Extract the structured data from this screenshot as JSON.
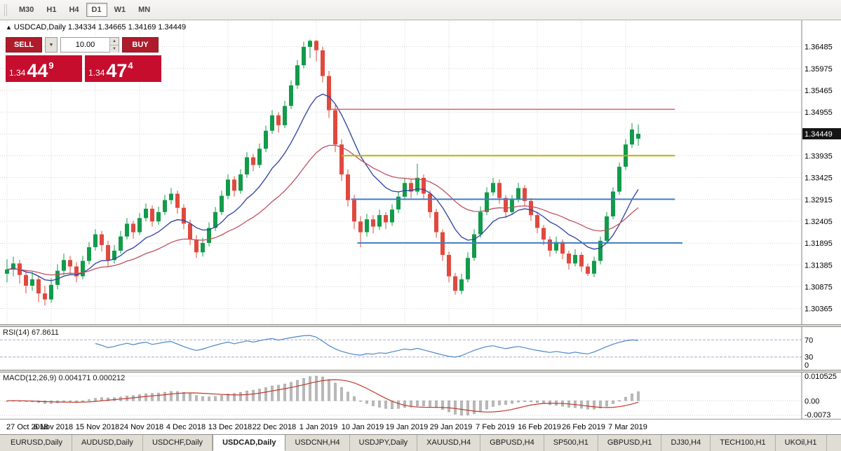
{
  "toolbar": {
    "timeframes": [
      {
        "label": "M30",
        "active": false
      },
      {
        "label": "H1",
        "active": false
      },
      {
        "label": "H4",
        "active": false
      },
      {
        "label": "D1",
        "active": true
      },
      {
        "label": "W1",
        "active": false
      },
      {
        "label": "MN",
        "active": false
      }
    ]
  },
  "symbol_info": {
    "arrow": "▲",
    "text": "USDCAD,Daily 1.34334 1.34665 1.34169 1.34449"
  },
  "trade_panel": {
    "sell_label": "SELL",
    "buy_label": "BUY",
    "volume": "10.00",
    "sell_price": {
      "prefix": "1.34",
      "big": "44",
      "sup": "9"
    },
    "buy_price": {
      "prefix": "1.34",
      "big": "47",
      "sup": "4"
    },
    "colors": {
      "button": "#ae1c2c",
      "price_panel": "#c60d2e"
    }
  },
  "chart_data": [
    {
      "type": "candlestick",
      "title": "USDCAD,Daily",
      "ohlc_current": {
        "open": 1.34334,
        "high": 1.34665,
        "low": 1.34169,
        "close": 1.34449
      },
      "current_price": "1.34449",
      "ylim": [
        1.3,
        1.371
      ],
      "y_ticks": [
        "1.36485",
        "1.35975",
        "1.35465",
        "1.34955",
        "1.34445",
        "1.33935",
        "1.33425",
        "1.32915",
        "1.32405",
        "1.31895",
        "1.31385",
        "1.30875",
        "1.30365"
      ],
      "x_ticks": [
        {
          "label": "27 Oct 2018",
          "bar": 0
        },
        {
          "label": "6 Nov 2018",
          "bar": 7
        },
        {
          "label": "15 Nov 2018",
          "bar": 14
        },
        {
          "label": "24 Nov 2018",
          "bar": 21
        },
        {
          "label": "4 Dec 2018",
          "bar": 28
        },
        {
          "label": "13 Dec 2018",
          "bar": 35
        },
        {
          "label": "22 Dec 2018",
          "bar": 42
        },
        {
          "label": "1 Jan 2019",
          "bar": 49
        },
        {
          "label": "10 Jan 2019",
          "bar": 56
        },
        {
          "label": "19 Jan 2019",
          "bar": 63
        },
        {
          "label": "29 Jan 2019",
          "bar": 70
        },
        {
          "label": "7 Feb 2019",
          "bar": 77
        },
        {
          "label": "16 Feb 2019",
          "bar": 84
        },
        {
          "label": "26 Feb 2019",
          "bar": 91
        },
        {
          "label": "7 Mar 2019",
          "bar": 98
        }
      ],
      "up_color": "#119b4a",
      "down_color": "#e0493e",
      "ma_lines": [
        {
          "color": "#2e3f9f",
          "period": 12
        },
        {
          "color": "#c05060",
          "period": 30
        }
      ],
      "hlines": [
        {
          "price": 1.3502,
          "color": "#e0635a",
          "width": 1.5,
          "from": 51,
          "to": 105.8
        },
        {
          "price": 1.3394,
          "color": "#b9b400",
          "width": 2,
          "from": 53,
          "to": 105.8
        },
        {
          "price": 1.3292,
          "color": "#3f7cc0",
          "width": 2,
          "from": 54.5,
          "to": 105.8
        },
        {
          "price": 1.319,
          "color": "#3f7cc0",
          "width": 2,
          "from": 55.5,
          "to": 107
        }
      ],
      "candles": [
        [
          1.3118,
          1.3152,
          1.3098,
          1.3128
        ],
        [
          1.3128,
          1.3158,
          1.3112,
          1.3142
        ],
        [
          1.3142,
          1.315,
          1.3095,
          1.3115
        ],
        [
          1.3115,
          1.3126,
          1.3072,
          1.309
        ],
        [
          1.309,
          1.3122,
          1.3078,
          1.3105
        ],
        [
          1.3105,
          1.3112,
          1.3052,
          1.3072
        ],
        [
          1.3072,
          1.309,
          1.3044,
          1.3058
        ],
        [
          1.3058,
          1.3108,
          1.305,
          1.3092
        ],
        [
          1.3092,
          1.314,
          1.3082,
          1.3125
        ],
        [
          1.3125,
          1.3165,
          1.3115,
          1.315
        ],
        [
          1.315,
          1.316,
          1.3118,
          1.3135
        ],
        [
          1.3135,
          1.3145,
          1.3098,
          1.3112
        ],
        [
          1.3112,
          1.316,
          1.3105,
          1.3148
        ],
        [
          1.3148,
          1.3192,
          1.314,
          1.318
        ],
        [
          1.318,
          1.3222,
          1.3172,
          1.321
        ],
        [
          1.321,
          1.3218,
          1.317,
          1.3185
        ],
        [
          1.3185,
          1.3195,
          1.3135,
          1.315
        ],
        [
          1.315,
          1.3185,
          1.3142,
          1.3172
        ],
        [
          1.3172,
          1.3218,
          1.3165,
          1.3205
        ],
        [
          1.3205,
          1.3248,
          1.3198,
          1.3235
        ],
        [
          1.3235,
          1.3242,
          1.32,
          1.3215
        ],
        [
          1.3215,
          1.326,
          1.3208,
          1.3248
        ],
        [
          1.3248,
          1.3282,
          1.324,
          1.327
        ],
        [
          1.327,
          1.3278,
          1.3228,
          1.324
        ],
        [
          1.324,
          1.3275,
          1.3232,
          1.3262
        ],
        [
          1.3262,
          1.3302,
          1.3255,
          1.329
        ],
        [
          1.329,
          1.3318,
          1.328,
          1.3305
        ],
        [
          1.3305,
          1.3312,
          1.3258,
          1.3272
        ],
        [
          1.3272,
          1.328,
          1.3222,
          1.3235
        ],
        [
          1.3235,
          1.3244,
          1.3185,
          1.3198
        ],
        [
          1.3198,
          1.3208,
          1.3155,
          1.3168
        ],
        [
          1.3168,
          1.3202,
          1.3158,
          1.319
        ],
        [
          1.319,
          1.3238,
          1.3182,
          1.3225
        ],
        [
          1.3225,
          1.3274,
          1.3218,
          1.3262
        ],
        [
          1.3262,
          1.3312,
          1.3255,
          1.33
        ],
        [
          1.33,
          1.335,
          1.3292,
          1.3338
        ],
        [
          1.3338,
          1.3346,
          1.3298,
          1.3312
        ],
        [
          1.3312,
          1.3362,
          1.3305,
          1.335
        ],
        [
          1.335,
          1.3402,
          1.3342,
          1.339
        ],
        [
          1.339,
          1.3398,
          1.3358,
          1.3372
        ],
        [
          1.3372,
          1.3422,
          1.3365,
          1.341
        ],
        [
          1.341,
          1.3464,
          1.3402,
          1.3452
        ],
        [
          1.3452,
          1.35,
          1.3445,
          1.3488
        ],
        [
          1.3488,
          1.3495,
          1.3448,
          1.3465
        ],
        [
          1.3465,
          1.3522,
          1.3458,
          1.351
        ],
        [
          1.351,
          1.357,
          1.3502,
          1.3558
        ],
        [
          1.3558,
          1.3617,
          1.355,
          1.3605
        ],
        [
          1.3605,
          1.366,
          1.3598,
          1.3648
        ],
        [
          1.3648,
          1.3665,
          1.3622,
          1.3662
        ],
        [
          1.3662,
          1.3664,
          1.3614,
          1.364
        ],
        [
          1.364,
          1.3648,
          1.3565,
          1.358
        ],
        [
          1.358,
          1.3592,
          1.3482,
          1.35
        ],
        [
          1.35,
          1.3512,
          1.3402,
          1.342
        ],
        [
          1.342,
          1.3432,
          1.3335,
          1.335
        ],
        [
          1.335,
          1.3362,
          1.3275,
          1.329
        ],
        [
          1.329,
          1.3302,
          1.3222,
          1.324
        ],
        [
          1.324,
          1.3252,
          1.318,
          1.3215
        ],
        [
          1.3215,
          1.3258,
          1.3205,
          1.3245
        ],
        [
          1.3245,
          1.3255,
          1.3212,
          1.3228
        ],
        [
          1.3228,
          1.3268,
          1.322,
          1.3255
        ],
        [
          1.3255,
          1.3262,
          1.3222,
          1.3238
        ],
        [
          1.3238,
          1.328,
          1.323,
          1.3268
        ],
        [
          1.3268,
          1.331,
          1.326,
          1.3298
        ],
        [
          1.3298,
          1.3342,
          1.329,
          1.333
        ],
        [
          1.333,
          1.3338,
          1.3295,
          1.331
        ],
        [
          1.331,
          1.3375,
          1.3302,
          1.3342
        ],
        [
          1.3342,
          1.335,
          1.3292,
          1.3305
        ],
        [
          1.3305,
          1.3312,
          1.3248,
          1.3262
        ],
        [
          1.3262,
          1.327,
          1.3202,
          1.3215
        ],
        [
          1.3215,
          1.3222,
          1.3148,
          1.3162
        ],
        [
          1.3162,
          1.317,
          1.3098,
          1.3112
        ],
        [
          1.3112,
          1.312,
          1.3069,
          1.3078
        ],
        [
          1.3078,
          1.3118,
          1.307,
          1.3105
        ],
        [
          1.3105,
          1.3168,
          1.3098,
          1.3155
        ],
        [
          1.3155,
          1.3222,
          1.3148,
          1.321
        ],
        [
          1.321,
          1.3275,
          1.3202,
          1.3262
        ],
        [
          1.3262,
          1.332,
          1.3255,
          1.3308
        ],
        [
          1.3308,
          1.3342,
          1.33,
          1.333
        ],
        [
          1.333,
          1.3338,
          1.3282,
          1.3295
        ],
        [
          1.3295,
          1.3302,
          1.3248,
          1.3262
        ],
        [
          1.3262,
          1.3302,
          1.3255,
          1.3292
        ],
        [
          1.3292,
          1.333,
          1.3285,
          1.3318
        ],
        [
          1.3318,
          1.3325,
          1.3275,
          1.3288
        ],
        [
          1.3288,
          1.3295,
          1.3242,
          1.3255
        ],
        [
          1.3255,
          1.3262,
          1.3212,
          1.3225
        ],
        [
          1.3225,
          1.3232,
          1.3185,
          1.3198
        ],
        [
          1.3198,
          1.3205,
          1.3158,
          1.3172
        ],
        [
          1.3172,
          1.3205,
          1.3165,
          1.3192
        ],
        [
          1.3192,
          1.3198,
          1.3152,
          1.3165
        ],
        [
          1.3165,
          1.3172,
          1.3128,
          1.3142
        ],
        [
          1.3142,
          1.3175,
          1.3135,
          1.3162
        ],
        [
          1.3162,
          1.3168,
          1.3122,
          1.3135
        ],
        [
          1.3135,
          1.3142,
          1.3113,
          1.3118
        ],
        [
          1.3118,
          1.3158,
          1.311,
          1.3148
        ],
        [
          1.3148,
          1.3205,
          1.314,
          1.3195
        ],
        [
          1.3195,
          1.3262,
          1.3188,
          1.3252
        ],
        [
          1.3252,
          1.332,
          1.3245,
          1.331
        ],
        [
          1.331,
          1.3378,
          1.3302,
          1.3368
        ],
        [
          1.3368,
          1.3432,
          1.336,
          1.342
        ],
        [
          1.342,
          1.347,
          1.3412,
          1.3455
        ],
        [
          1.34334,
          1.34665,
          1.34169,
          1.34449
        ]
      ]
    },
    {
      "type": "line",
      "name": "RSI",
      "header": "RSI(14) 67.8611",
      "period": 14,
      "current_value": 67.8611,
      "line_color": "#4a86c8",
      "levels": [
        {
          "value": 70,
          "label": "70"
        },
        {
          "value": 30,
          "label": "30"
        },
        {
          "value": 0,
          "label": "0"
        }
      ]
    },
    {
      "type": "macd",
      "header": "MACD(12,26,9) 0.004171 0.000212",
      "fast": 12,
      "slow": 26,
      "signal": 9,
      "current_macd": 0.004171,
      "current_signal": 0.000212,
      "histogram_color": "#b9b9b9",
      "signal_color": "#c0392b",
      "y_labels": [
        {
          "label": "0.010525",
          "pos": "top"
        },
        {
          "label": "0.00",
          "pos": "zero"
        },
        {
          "label": "-0.0073",
          "pos": "bottom"
        }
      ]
    }
  ],
  "tabs": [
    {
      "label": "EURUSD,Daily",
      "active": false
    },
    {
      "label": "AUDUSD,Daily",
      "active": false
    },
    {
      "label": "USDCHF,Daily",
      "active": false
    },
    {
      "label": "USDCAD,Daily",
      "active": true
    },
    {
      "label": "USDCNH,H4",
      "active": false
    },
    {
      "label": "USDJPY,Daily",
      "active": false
    },
    {
      "label": "XAUUSD,H4",
      "active": false
    },
    {
      "label": "GBPUSD,H4",
      "active": false
    },
    {
      "label": "SP500,H1",
      "active": false
    },
    {
      "label": "GBPUSD,H1",
      "active": false
    },
    {
      "label": "DJ30,H4",
      "active": false
    },
    {
      "label": "TECH100,H1",
      "active": false
    },
    {
      "label": "UKOil,H1",
      "active": false
    }
  ]
}
